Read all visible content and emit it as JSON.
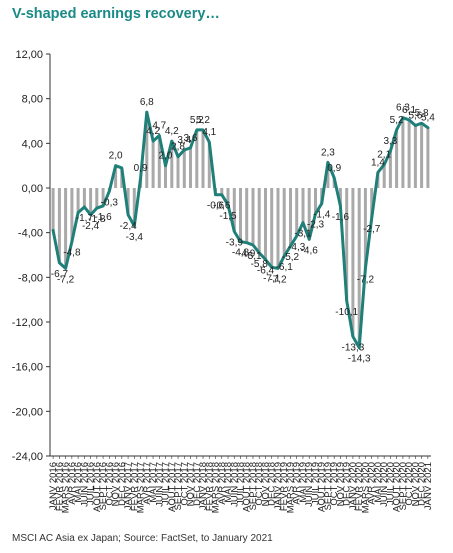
{
  "chart_data": {
    "type": "line",
    "title": "V-shaped earnings recovery…",
    "source": "MSCI AC Asia ex Japan; Source: FactSet, to January 2021",
    "xlabel": "",
    "ylabel": "",
    "ylim": [
      -24,
      12
    ],
    "yticks": [
      12,
      8,
      4,
      0,
      -4,
      -8,
      -12,
      -16,
      -20,
      -24
    ],
    "ytick_labels": [
      "12,00",
      "8,00",
      "4,00",
      "0,00",
      "-4,00",
      "-8,00",
      "-12,00",
      "-16,00",
      "-20,00",
      "-24,00"
    ],
    "grid": false,
    "legend": "none",
    "colors": {
      "line": "#1f7f79",
      "bars": "#a9a9a9",
      "title": "#1a8a86"
    },
    "x": [
      "JANV 2016",
      "FEVR 2016",
      "MARS 2016",
      "AVR 2016",
      "MAI 2016",
      "JUIN 2016",
      "JUIL 2016",
      "AOUT 2016",
      "SEPT 2016",
      "OCT 2016",
      "NOV 2016",
      "DEC 2016",
      "JANV 2017",
      "FEVR 2017",
      "MARS 2017",
      "AVR 2017",
      "MAI 2017",
      "JUIN 2017",
      "JUIL 2017",
      "AOUT 2017",
      "SEPT 2017",
      "OCT 2017",
      "NOV 2017",
      "DEC 2017",
      "JANV 2018",
      "FEVR 2018",
      "MARS 2018",
      "AVR 2018",
      "MAI 2018",
      "JUIN 2018",
      "JUIL 2018",
      "AOUT 2018",
      "SEPT 2018",
      "OCT 2018",
      "NOV 2018",
      "DEC 2018",
      "JANV 2019",
      "FEVR 2019",
      "MARS 2019",
      "AVR 2019",
      "MAI 2019",
      "JUIN 2019",
      "JUIL 2019",
      "AOUT 2019",
      "SEPT 2019",
      "OCT 2019",
      "NOV 2019",
      "DEC 2019",
      "JANV 2020",
      "FEVR 2020",
      "MARS 2020",
      "AVR 2020",
      "MAI 2020",
      "JUIN 2020",
      "JUIL 2020",
      "AOUT 2020",
      "SEPT 2020",
      "OCT 2020",
      "NOV 2020",
      "DEC 2020",
      "JANV 2021"
    ],
    "series": [
      {
        "name": "",
        "style": "line",
        "values": [
          -3.8,
          -6.7,
          -7.2,
          -4.8,
          -2.2,
          -1.7,
          -2.4,
          -1.8,
          -1.6,
          -0.3,
          2.0,
          1.8,
          -2.4,
          -3.4,
          0.9,
          6.8,
          4.2,
          4.7,
          2.0,
          4.2,
          2.8,
          3.4,
          3.6,
          5.2,
          5.2,
          4.1,
          -0.6,
          -0.6,
          -1.5,
          -3.9,
          -4.8,
          -4.9,
          -5.1,
          -5.8,
          -6.4,
          -7.1,
          -7.2,
          -6.1,
          -5.2,
          -4.3,
          -3.1,
          -4.6,
          -2.3,
          -1.4,
          2.3,
          0.9,
          -1.6,
          -10.1,
          -13.3,
          -14.3,
          -7.2,
          -2.7,
          1.4,
          2.1,
          3.3,
          5.2,
          6.3,
          6.1,
          5.6,
          5.8,
          5.4
        ],
        "labels": [
          "",
          "-6,7",
          "-7,2",
          "-4,8",
          "",
          "-1,7",
          "-2,4",
          "-1,8",
          "-1,6",
          "-0,3",
          "2,0",
          "",
          "-2,4",
          "-3,4",
          "0,9",
          "6,8",
          "4,2",
          "4,7",
          "2,0",
          "4,2",
          "2,8",
          "3,4",
          "3,6",
          "5,2",
          "5,2",
          "4,1",
          "-0,6",
          "-0,6",
          "-1,5",
          "-3,9",
          "-4,8",
          "-4,9",
          "-5,1",
          "-5,8",
          "-6,4",
          "-7,1",
          "-7,2",
          "-6,1",
          "-5,2",
          "-4,3",
          "-3,1",
          "-4,6",
          "-2,3",
          "-1,4",
          "2,3",
          "0,9",
          "-1,6",
          "-10,1",
          "-13,3",
          "-14,3",
          "-7,2",
          "-2,7",
          "1,4",
          "2,1",
          "3,3",
          "5,2",
          "6,3",
          "6,1",
          "5,6",
          "5,8",
          "5,4"
        ]
      },
      {
        "name": "",
        "style": "bar",
        "values": [
          -3.8,
          -6.7,
          -7.2,
          -4.8,
          -2.2,
          -1.7,
          -2.4,
          -1.8,
          -1.6,
          -0.3,
          2.0,
          1.8,
          -2.4,
          -3.4,
          0.9,
          6.8,
          4.2,
          4.7,
          2.0,
          4.2,
          2.8,
          3.4,
          3.6,
          5.2,
          5.2,
          4.1,
          -0.6,
          -0.6,
          -1.5,
          -3.9,
          -4.8,
          -4.9,
          -5.1,
          -5.8,
          -6.4,
          -7.1,
          -7.2,
          -6.1,
          -5.2,
          -4.3,
          -3.1,
          -4.6,
          -2.3,
          -1.4,
          2.3,
          0.9,
          -1.6,
          -10.1,
          -13.3,
          -14.3,
          -7.2,
          -2.7,
          1.4,
          2.1,
          3.3,
          5.2,
          6.3,
          6.1,
          5.6,
          5.8,
          5.4
        ]
      }
    ]
  }
}
